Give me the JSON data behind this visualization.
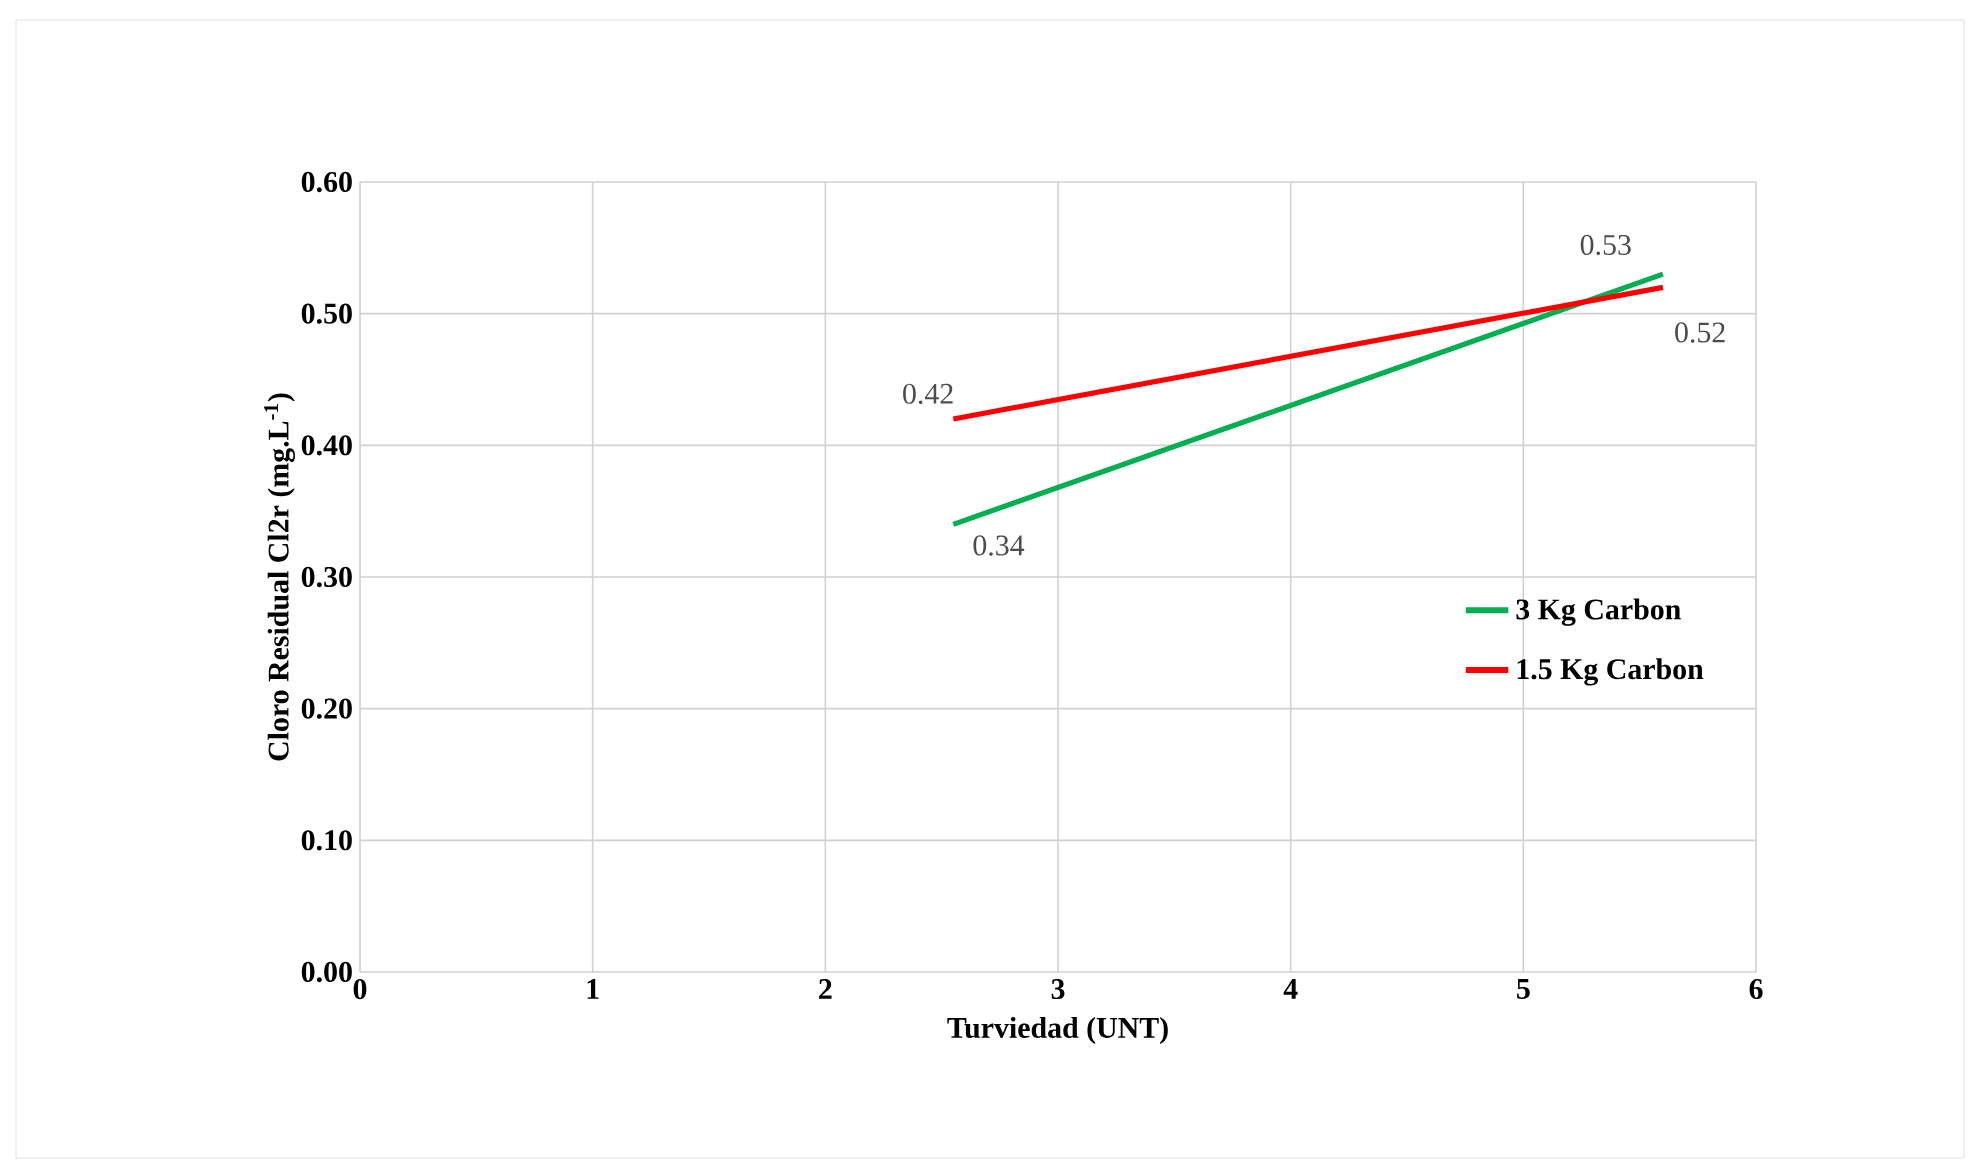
{
  "chart_data": {
    "type": "line",
    "xlabel": "Turviedad (UNT)",
    "ylabel": "Cloro Residual Cl2r (mg.L$^{-1}$)",
    "xlim": [
      0,
      6
    ],
    "xticks": [
      0,
      1,
      2,
      3,
      4,
      5,
      6
    ],
    "ylim": [
      0,
      0.6
    ],
    "yticks": [
      {
        "value": 0,
        "label": "0.00"
      },
      {
        "value": 0.1,
        "label": "0.10"
      },
      {
        "value": 0.2,
        "label": "0.20"
      },
      {
        "value": 0.3,
        "label": "0.30"
      },
      {
        "value": 0.4,
        "label": "0.40"
      },
      {
        "value": 0.5,
        "label": "0.50"
      },
      {
        "value": 0.6,
        "label": "0.60"
      }
    ],
    "x": [
      2.55,
      5.6
    ],
    "series": [
      {
        "name": "3 Kg Carbon",
        "color": "#00b050",
        "values": [
          0.34,
          0.53
        ]
      },
      {
        "name": "1.5 Kg Carbon",
        "color": "#ff0000",
        "values": [
          0.42,
          0.52
        ]
      }
    ],
    "data_labels": true,
    "grid": true,
    "legend": "right"
  }
}
